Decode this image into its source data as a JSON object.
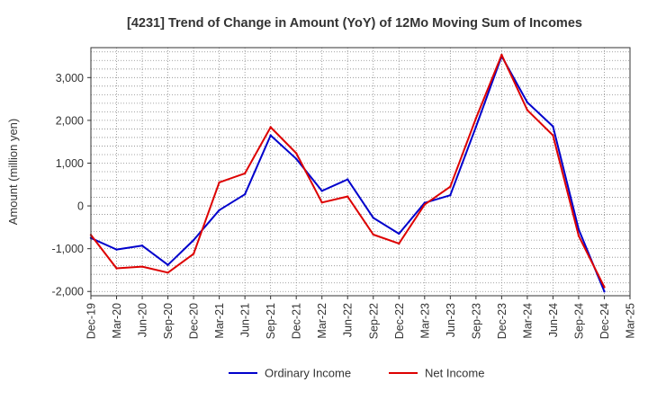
{
  "chart_data": {
    "type": "line",
    "title": "[4231]  Trend of Change in Amount (YoY) of 12Mo Moving Sum of Incomes",
    "ylabel": "Amount (million yen)",
    "xlabel": "",
    "x": [
      "Dec-19",
      "Mar-20",
      "Jun-20",
      "Sep-20",
      "Dec-20",
      "Mar-21",
      "Jun-21",
      "Sep-21",
      "Dec-21",
      "Mar-22",
      "Jun-22",
      "Sep-22",
      "Dec-22",
      "Mar-23",
      "Jun-23",
      "Sep-23",
      "Dec-23",
      "Mar-24",
      "Jun-24",
      "Sep-24",
      "Dec-24",
      "Mar-25"
    ],
    "ylim": [
      -2100,
      3700
    ],
    "yticks": [
      -2000,
      -1000,
      0,
      1000,
      2000,
      3000
    ],
    "ytick_labels": [
      "-2,000",
      "-1,000",
      "0",
      "1,000",
      "2,000",
      "3,000"
    ],
    "grid": true,
    "legend_position": "bottom-center",
    "series": [
      {
        "name": "Ordinary Income",
        "color": "#0000cc",
        "values": [
          -750,
          -1020,
          -930,
          -1380,
          -800,
          -100,
          270,
          1650,
          1100,
          350,
          620,
          -280,
          -650,
          70,
          250,
          1850,
          3500,
          2420,
          1860,
          -550,
          -2000,
          null
        ]
      },
      {
        "name": "Net Income",
        "color": "#dd0000",
        "values": [
          -680,
          -1460,
          -1420,
          -1560,
          -1120,
          550,
          760,
          1840,
          1230,
          80,
          220,
          -670,
          -880,
          30,
          450,
          2050,
          3530,
          2240,
          1650,
          -700,
          -1900,
          null
        ]
      }
    ]
  }
}
